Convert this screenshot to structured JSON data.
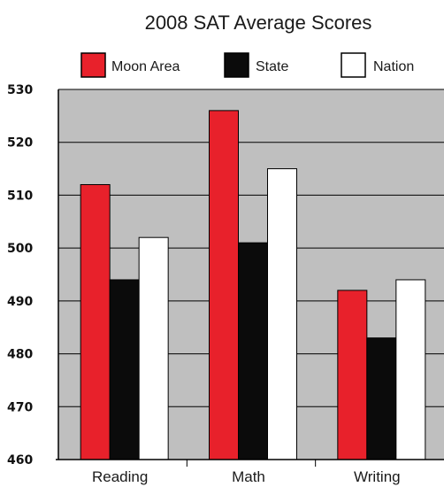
{
  "chart_data": {
    "type": "bar",
    "title": "2008 SAT Average Scores",
    "xlabel": "",
    "ylabel": "",
    "categories": [
      "Reading",
      "Math",
      "Writing"
    ],
    "series": [
      {
        "name": "Moon Area",
        "color": "#e8212b",
        "values": [
          512,
          526,
          492
        ]
      },
      {
        "name": "State",
        "color": "#0b0b0b",
        "values": [
          494,
          501,
          483
        ]
      },
      {
        "name": "Nation",
        "color": "#ffffff",
        "values": [
          502,
          515,
          494
        ]
      }
    ],
    "ylim": [
      460,
      530
    ],
    "yticks": [
      "460",
      "470",
      "480",
      "490",
      "500",
      "510",
      "520",
      "530"
    ],
    "grid": true,
    "legend_position": "top",
    "plot_background": "#bfbfbf"
  }
}
